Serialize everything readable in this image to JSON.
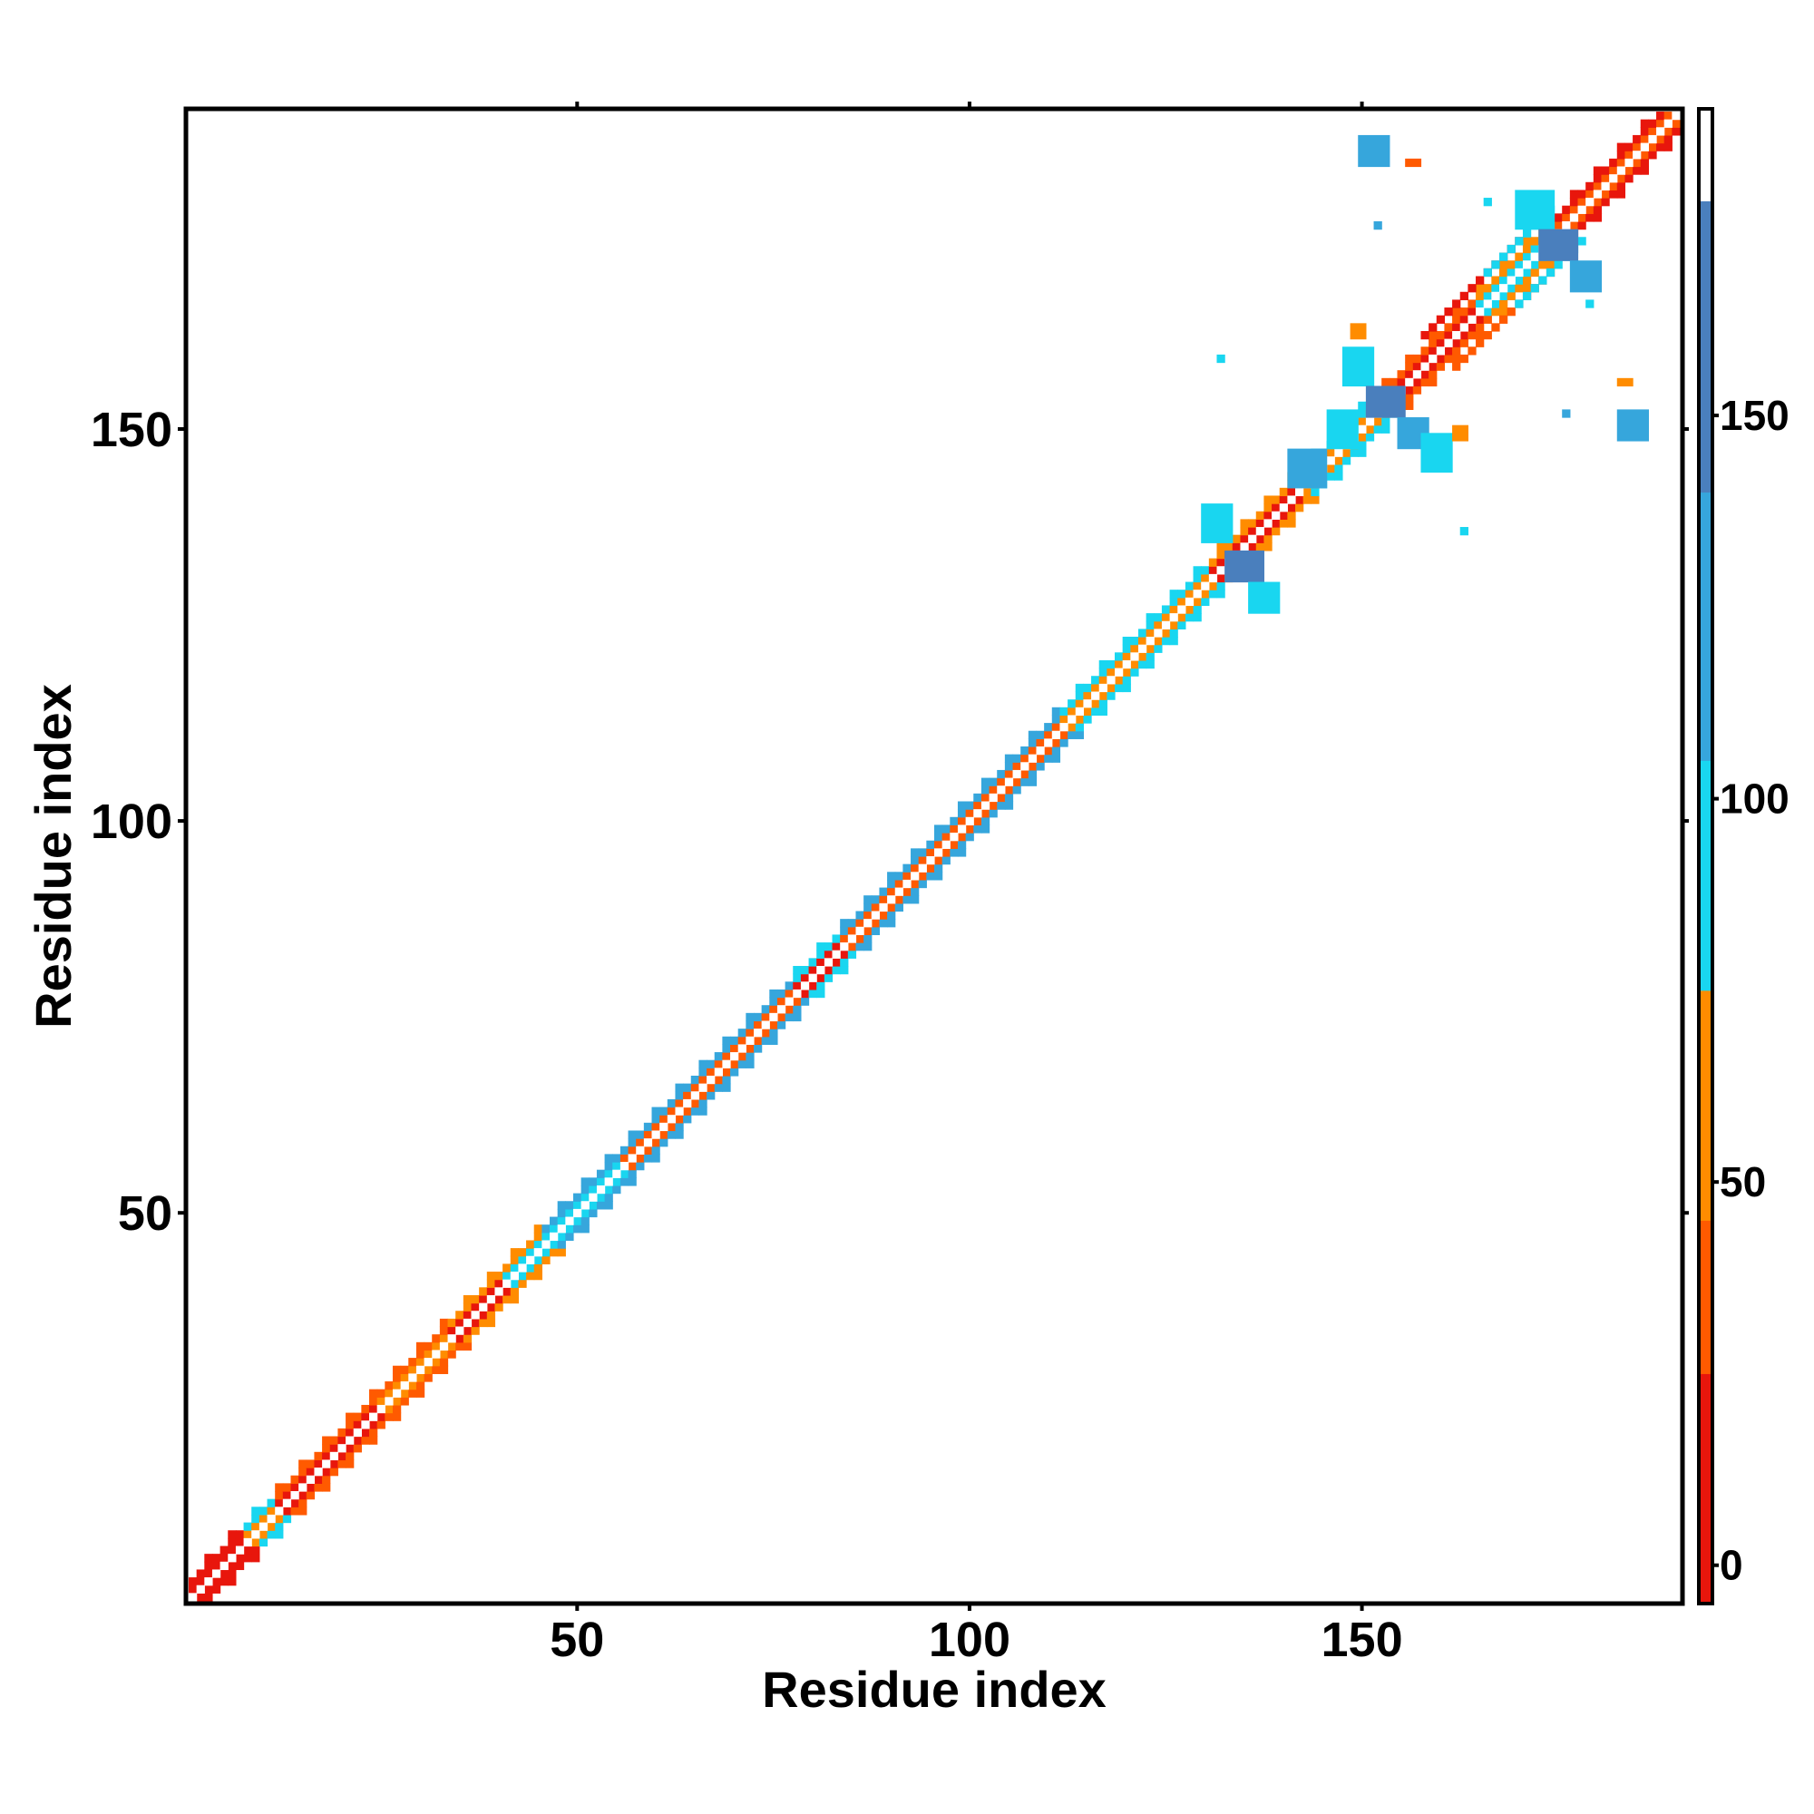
{
  "chart_data": {
    "type": "heatmap",
    "title": "",
    "xlabel": "Residue index",
    "ylabel": "Residue index",
    "xlim": [
      1,
      190
    ],
    "ylim": [
      1,
      190
    ],
    "x_ticks": [
      50,
      100,
      150
    ],
    "y_ticks": [
      50,
      100,
      150
    ],
    "x_tick_labels": [
      "50",
      "100",
      "150"
    ],
    "y_tick_labels": [
      "50",
      "100",
      "150"
    ],
    "colorbar": {
      "range": [
        -5,
        190
      ],
      "ticks": [
        0,
        50,
        100,
        150
      ],
      "tick_labels": [
        "0",
        "50",
        "100",
        "150"
      ],
      "bands": [
        {
          "from": -5,
          "to": 25,
          "color": "#e8160c"
        },
        {
          "from": 25,
          "to": 45,
          "color": "#ff5a00"
        },
        {
          "from": 45,
          "to": 75,
          "color": "#ff8c00"
        },
        {
          "from": 75,
          "to": 105,
          "color": "#19d6f0"
        },
        {
          "from": 105,
          "to": 140,
          "color": "#36a6dc"
        },
        {
          "from": 140,
          "to": 178,
          "color": "#4a7fbd"
        },
        {
          "from": 178,
          "to": 190,
          "color": "#ffffff"
        }
      ]
    },
    "grid": false,
    "colors": {
      "diagonal": "#ffffff",
      "red": "#e8160c",
      "orange_red": "#ff5a00",
      "orange": "#ff8c00",
      "cyan": "#19d6f0",
      "blue": "#36a6dc",
      "steel_blue": "#4a7fbd"
    },
    "diagonal_band": {
      "segments": [
        {
          "from": 1,
          "to": 8,
          "first": "red",
          "second": "red"
        },
        {
          "from": 8,
          "to": 12,
          "first": "orange",
          "second": "cyan"
        },
        {
          "from": 12,
          "to": 25,
          "first": "red",
          "second": "orange_red"
        },
        {
          "from": 25,
          "to": 34,
          "first": "orange",
          "second": "orange_red"
        },
        {
          "from": 34,
          "to": 41,
          "first": "red",
          "second": "orange"
        },
        {
          "from": 41,
          "to": 46,
          "first": "cyan",
          "second": "orange"
        },
        {
          "from": 46,
          "to": 56,
          "first": "cyan",
          "second": "blue"
        },
        {
          "from": 56,
          "to": 78,
          "first": "orange_red",
          "second": "blue"
        },
        {
          "from": 78,
          "to": 84,
          "first": "red",
          "second": "cyan"
        },
        {
          "from": 84,
          "to": 112,
          "first": "orange_red",
          "second": "blue"
        },
        {
          "from": 112,
          "to": 131,
          "first": "orange",
          "second": "cyan"
        },
        {
          "from": 131,
          "to": 142,
          "first": "red",
          "second": "orange"
        },
        {
          "from": 142,
          "to": 153,
          "first": "orange",
          "second": "cyan"
        },
        {
          "from": 153,
          "to": 165,
          "first": "red",
          "second": "orange_red"
        },
        {
          "from": 165,
          "to": 175,
          "first": "cyan",
          "second": "orange"
        },
        {
          "from": 175,
          "to": 190,
          "first": "orange_red",
          "second": "red"
        }
      ]
    },
    "parallel_strands": [
      {
        "x1": 158,
        "y1": 162,
        "x2": 170,
        "y2": 174,
        "color": "red"
      },
      {
        "x1": 162,
        "y1": 158,
        "x2": 174,
        "y2": 170,
        "color": "orange_red"
      },
      {
        "x1": 166,
        "y1": 170,
        "x2": 174,
        "y2": 178,
        "color": "cyan"
      },
      {
        "x1": 170,
        "y1": 166,
        "x2": 178,
        "y2": 174,
        "color": "cyan"
      }
    ],
    "blobs": [
      {
        "x": 130,
        "y": 136,
        "w": 4,
        "h": 5,
        "color": "cyan"
      },
      {
        "x": 133,
        "y": 131,
        "w": 5,
        "h": 4,
        "color": "steel_blue"
      },
      {
        "x": 136,
        "y": 127,
        "w": 4,
        "h": 4,
        "color": "cyan"
      },
      {
        "x": 141,
        "y": 143,
        "w": 5,
        "h": 5,
        "color": "blue"
      },
      {
        "x": 146,
        "y": 148,
        "w": 4,
        "h": 5,
        "color": "cyan"
      },
      {
        "x": 148,
        "y": 156,
        "w": 4,
        "h": 5,
        "color": "cyan"
      },
      {
        "x": 151,
        "y": 152,
        "w": 5,
        "h": 4,
        "color": "steel_blue"
      },
      {
        "x": 155,
        "y": 148,
        "w": 4,
        "h": 4,
        "color": "blue"
      },
      {
        "x": 158,
        "y": 145,
        "w": 4,
        "h": 5,
        "color": "cyan"
      },
      {
        "x": 170,
        "y": 176,
        "w": 5,
        "h": 5,
        "color": "cyan"
      },
      {
        "x": 173,
        "y": 172,
        "w": 5,
        "h": 4,
        "color": "steel_blue"
      },
      {
        "x": 177,
        "y": 168,
        "w": 4,
        "h": 4,
        "color": "blue"
      },
      {
        "x": 150,
        "y": 184,
        "w": 4,
        "h": 4,
        "color": "blue"
      },
      {
        "x": 183,
        "y": 149,
        "w": 4,
        "h": 4,
        "color": "blue"
      },
      {
        "x": 163,
        "y": 137,
        "w": 1,
        "h": 1,
        "color": "cyan"
      },
      {
        "x": 132,
        "y": 159,
        "w": 1,
        "h": 1,
        "color": "cyan"
      },
      {
        "x": 156,
        "y": 184,
        "w": 2,
        "h": 1,
        "color": "orange_red"
      },
      {
        "x": 183,
        "y": 156,
        "w": 2,
        "h": 1,
        "color": "orange"
      },
      {
        "x": 152,
        "y": 176,
        "w": 1,
        "h": 1,
        "color": "blue"
      },
      {
        "x": 176,
        "y": 152,
        "w": 1,
        "h": 1,
        "color": "blue"
      },
      {
        "x": 166,
        "y": 179,
        "w": 1,
        "h": 1,
        "color": "cyan"
      },
      {
        "x": 179,
        "y": 166,
        "w": 1,
        "h": 1,
        "color": "cyan"
      },
      {
        "x": 149,
        "y": 162,
        "w": 2,
        "h": 2,
        "color": "orange"
      },
      {
        "x": 162,
        "y": 149,
        "w": 2,
        "h": 2,
        "color": "orange"
      }
    ]
  }
}
